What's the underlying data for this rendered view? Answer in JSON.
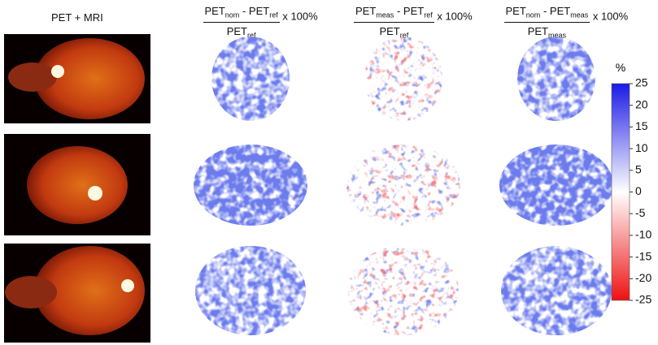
{
  "figure": {
    "columns": [
      {
        "title": "PET + MRI"
      },
      {
        "numerator": {
          "left": {
            "base": "PET",
            "sub": "nom"
          },
          "operator": "-",
          "right": {
            "base": "PET",
            "sub": "ref"
          }
        },
        "factor": "x 100%",
        "denominator": {
          "base": "PET",
          "sub": "ref"
        }
      },
      {
        "numerator": {
          "left": {
            "base": "PET",
            "sub": "meas"
          },
          "operator": "-",
          "right": {
            "base": "PET",
            "sub": "ref"
          }
        },
        "factor": "x 100%",
        "denominator": {
          "base": "PET",
          "sub": "ref"
        }
      },
      {
        "numerator": {
          "left": {
            "base": "PET",
            "sub": "nom"
          },
          "operator": "-",
          "right": {
            "base": "PET",
            "sub": "meas"
          }
        },
        "factor": "x 100%",
        "denominator": {
          "base": "PET",
          "sub": "meas"
        }
      }
    ],
    "colorbar": {
      "label": "%",
      "lim": [
        -25,
        25
      ],
      "ticks": [
        25,
        20,
        15,
        10,
        5,
        0,
        -5,
        -10,
        -15,
        -20,
        -25
      ]
    }
  }
}
